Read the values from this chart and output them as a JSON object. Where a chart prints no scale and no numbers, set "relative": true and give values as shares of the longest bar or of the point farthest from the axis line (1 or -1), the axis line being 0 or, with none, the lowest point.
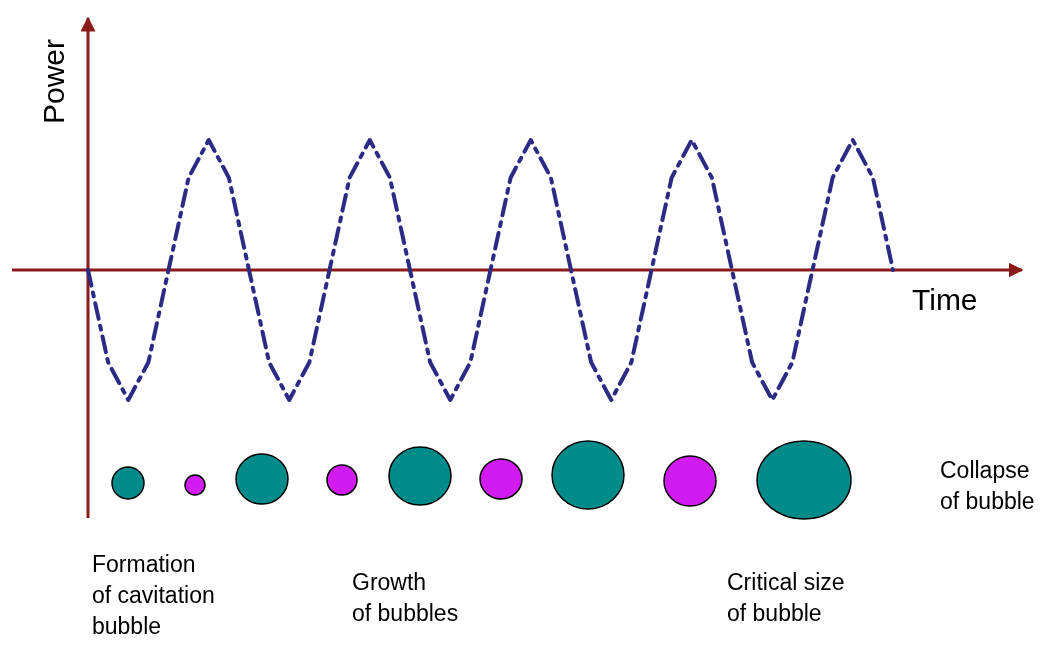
{
  "chart_data": {
    "type": "line",
    "relative": true,
    "xlabel": "Time",
    "ylabel": "Power",
    "categories": [
      null,
      null,
      null,
      null,
      null,
      null,
      null,
      null,
      null,
      null,
      null,
      null,
      null,
      null,
      null,
      null,
      null,
      null,
      null,
      null,
      null,
      null,
      null,
      null,
      null,
      null,
      null,
      null,
      null,
      null,
      null,
      null,
      null,
      null,
      null,
      null,
      null,
      null,
      null,
      null,
      null
    ],
    "series": [
      {
        "color": "#2b2b86",
        "values": [
          0,
          -0.71,
          -1,
          -0.71,
          0,
          0.71,
          1,
          0.71,
          0,
          -0.71,
          -1,
          -0.71,
          0,
          0.71,
          1,
          0.71,
          0,
          -0.71,
          -1,
          -0.71,
          0,
          0.71,
          1,
          0.71,
          0,
          -0.71,
          -1,
          -0.71,
          0,
          0.71,
          1,
          0.71,
          0,
          -0.71,
          -1,
          -0.71,
          0,
          0.71,
          1,
          0.71,
          0
        ]
      }
    ],
    "ref_lines": [
      {
        "axis": "y",
        "value": 0,
        "color": "#8b1a1a"
      }
    ],
    "line_style": "dashed",
    "marker": "none",
    "annotations": [
      "Formation\nof cavitation\nbubble",
      "Growth\nof bubbles",
      "Critical size\nof bubble",
      "Collapse\nof bubble"
    ]
  }
}
